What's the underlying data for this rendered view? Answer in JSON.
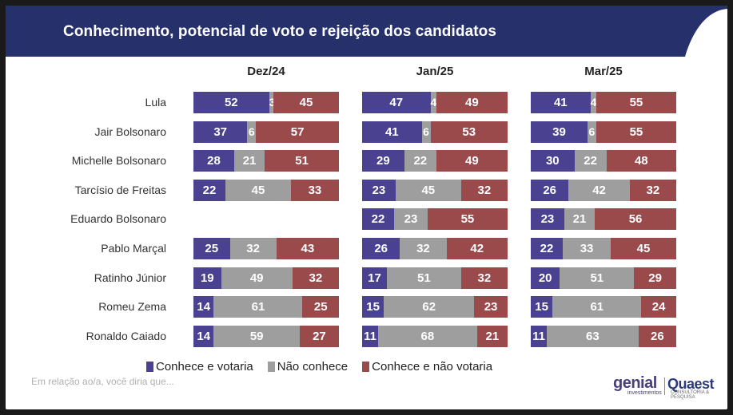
{
  "header": {
    "title": "Conhecimento, potencial de voto e rejeição dos candidatos"
  },
  "colors": {
    "header_bg": "#26306b",
    "votaria": "#4a4290",
    "nao_conhece": "#9e9e9e",
    "nao_votaria": "#9b4a4c"
  },
  "legend": {
    "votaria": "Conhece e votaria",
    "nao_conhece": "Não conhece",
    "nao_votaria": "Conhece e não votaria"
  },
  "footnote": "Em relação ao/a, você diria que...",
  "logos": {
    "genial": "genial",
    "genial_sub": "investimentos",
    "quaest": "Quaest",
    "quaest_sub": "CONSULTORIA & PESQUISA"
  },
  "chart_data": {
    "type": "bar",
    "stacked": true,
    "orientation": "horizontal",
    "title": "Conhecimento, potencial de voto e rejeição dos candidatos",
    "periods": [
      "Dez/24",
      "Jan/25",
      "Mar/25"
    ],
    "categories": [
      "Lula",
      "Jair Bolsonaro",
      "Michelle Bolsonaro",
      "Tarcísio de Freitas",
      "Eduardo Bolsonaro",
      "Pablo Marçal",
      "Ratinho Júnior",
      "Romeu Zema",
      "Ronaldo Caiado"
    ],
    "series": [
      {
        "name": "Conhece e votaria",
        "values": [
          [
            52,
            37,
            28,
            22,
            null,
            25,
            19,
            14,
            14
          ],
          [
            47,
            41,
            29,
            23,
            22,
            26,
            17,
            15,
            11
          ],
          [
            41,
            39,
            30,
            26,
            23,
            22,
            20,
            15,
            11
          ]
        ]
      },
      {
        "name": "Não conhece",
        "values": [
          [
            3,
            6,
            21,
            45,
            null,
            32,
            49,
            61,
            59
          ],
          [
            4,
            6,
            22,
            45,
            23,
            32,
            51,
            62,
            68
          ],
          [
            4,
            6,
            22,
            42,
            21,
            33,
            51,
            61,
            63
          ]
        ]
      },
      {
        "name": "Conhece e não votaria",
        "values": [
          [
            45,
            57,
            51,
            33,
            null,
            43,
            32,
            25,
            27
          ],
          [
            49,
            53,
            49,
            32,
            55,
            42,
            32,
            23,
            21
          ],
          [
            55,
            55,
            48,
            32,
            56,
            45,
            29,
            24,
            26
          ]
        ]
      }
    ],
    "xlim": [
      0,
      100
    ],
    "legend_position": "bottom"
  }
}
